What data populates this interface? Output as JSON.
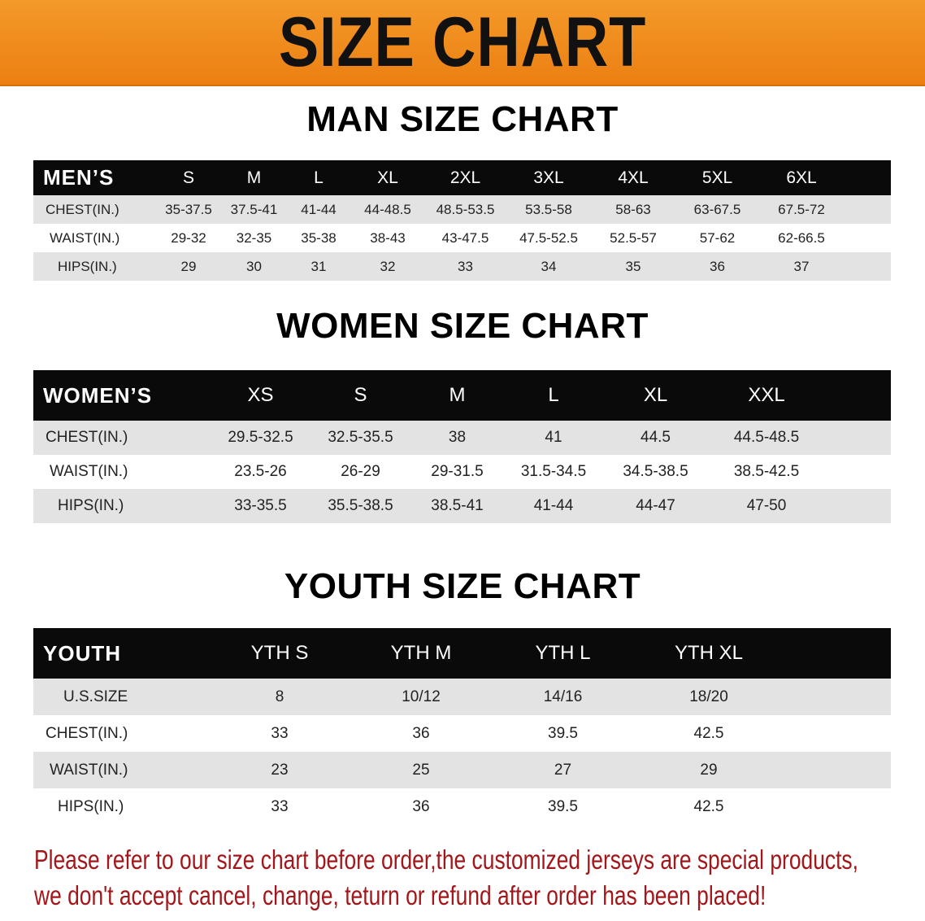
{
  "banner_title": "SIZE CHART",
  "accent_color": "#ee8a1c",
  "note_color": "#a3161a",
  "men": {
    "title": "MAN SIZE CHART",
    "header": [
      "MEN’S",
      "S",
      "M",
      "L",
      "XL",
      "2XL",
      "3XL",
      "4XL",
      "5XL",
      "6XL"
    ],
    "rows": [
      [
        "CHEST(IN.)",
        "35-37.5",
        "37.5-41",
        "41-44",
        "44-48.5",
        "48.5-53.5",
        "53.5-58",
        "58-63",
        "63-67.5",
        "67.5-72"
      ],
      [
        "WAIST(IN.)",
        "29-32",
        "32-35",
        "35-38",
        "38-43",
        "43-47.5",
        "47.5-52.5",
        "52.5-57",
        "57-62",
        "62-66.5"
      ],
      [
        "HIPS(IN.)",
        "29",
        "30",
        "31",
        "32",
        "33",
        "34",
        "35",
        "36",
        "37"
      ]
    ]
  },
  "women": {
    "title": "WOMEN SIZE CHART",
    "header": [
      "WOMEN’S",
      "XS",
      "S",
      "M",
      "L",
      "XL",
      "XXL"
    ],
    "rows": [
      [
        "CHEST(IN.)",
        "29.5-32.5",
        "32.5-35.5",
        "38",
        "41",
        "44.5",
        "44.5-48.5"
      ],
      [
        "WAIST(IN.)",
        "23.5-26",
        "26-29",
        "29-31.5",
        "31.5-34.5",
        "34.5-38.5",
        "38.5-42.5"
      ],
      [
        "HIPS(IN.)",
        "33-35.5",
        "35.5-38.5",
        "38.5-41",
        "41-44",
        "44-47",
        "47-50"
      ]
    ]
  },
  "youth": {
    "title": "YOUTH SIZE CHART",
    "header": [
      "YOUTH",
      "YTH S",
      "YTH M",
      "YTH L",
      "YTH XL"
    ],
    "rows": [
      [
        "U.S.SIZE",
        "8",
        "10/12",
        "14/16",
        "18/20"
      ],
      [
        "CHEST(IN.)",
        "33",
        "36",
        "39.5",
        "42.5"
      ],
      [
        "WAIST(IN.)",
        "23",
        "25",
        "27",
        "29"
      ],
      [
        "HIPS(IN.)",
        "33",
        "36",
        "39.5",
        "42.5"
      ]
    ]
  },
  "note": {
    "line1": "Please refer to our size chart before order,the customized jerseys are special products,",
    "line2": "we don't accept cancel, change, teturn or refund after order has been placed!"
  }
}
